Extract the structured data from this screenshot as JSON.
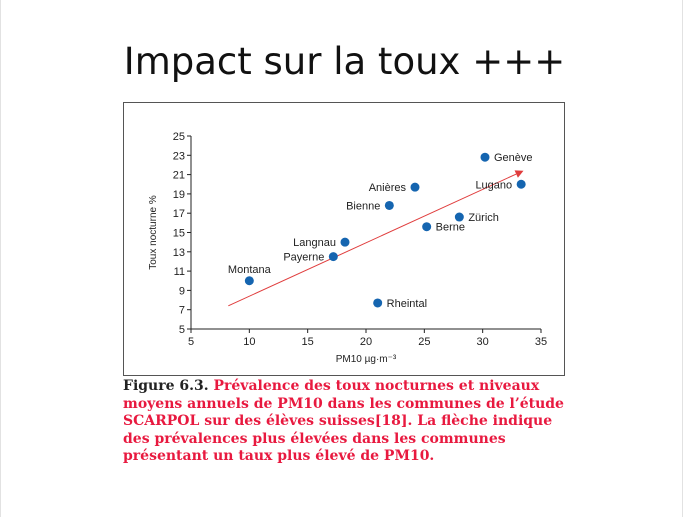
{
  "slide": {
    "title": "Impact sur la toux +++"
  },
  "caption": {
    "label": "Figure 6.3.",
    "text": "Prévalence des toux nocturnes et niveaux moyens annuels de PM10 dans les communes de l’étude SCARPOL sur des élèves suisses[18]. La flèche indique des prévalences plus élevées dans les communes présentant un taux plus élevé de PM10."
  },
  "colors": {
    "points": "#1565b0",
    "trend": "#e03c3c",
    "caption": "#e8193f"
  },
  "chart_data": {
    "type": "scatter",
    "xlabel": "PM10 µg·m⁻³",
    "ylabel": "Toux nocturne %",
    "xlim": [
      5,
      35
    ],
    "ylim": [
      5,
      25
    ],
    "xticks": [
      5,
      10,
      15,
      20,
      25,
      30,
      35
    ],
    "yticks": [
      5,
      7,
      9,
      11,
      13,
      15,
      17,
      19,
      21,
      23,
      25
    ],
    "grid": false,
    "points": [
      {
        "label": "Genève",
        "x": 30.2,
        "y": 22.8,
        "label_side": "right"
      },
      {
        "label": "Lugano",
        "x": 33.3,
        "y": 20.0,
        "label_side": "left"
      },
      {
        "label": "Anières",
        "x": 24.2,
        "y": 19.7,
        "label_side": "left"
      },
      {
        "label": "Bienne",
        "x": 22.0,
        "y": 17.8,
        "label_side": "left"
      },
      {
        "label": "Zürich",
        "x": 28.0,
        "y": 16.6,
        "label_side": "right"
      },
      {
        "label": "Berne",
        "x": 25.2,
        "y": 15.6,
        "label_side": "right"
      },
      {
        "label": "Langnau",
        "x": 18.2,
        "y": 14.0,
        "label_side": "left"
      },
      {
        "label": "Payerne",
        "x": 17.2,
        "y": 12.5,
        "label_side": "left"
      },
      {
        "label": "Montana",
        "x": 10.0,
        "y": 10.0,
        "label_side": "above"
      },
      {
        "label": "Rheintal",
        "x": 21.0,
        "y": 7.7,
        "label_side": "right"
      }
    ],
    "trend_arrow": {
      "x": [
        8.2,
        33.5
      ],
      "y": [
        7.4,
        21.4
      ]
    }
  }
}
